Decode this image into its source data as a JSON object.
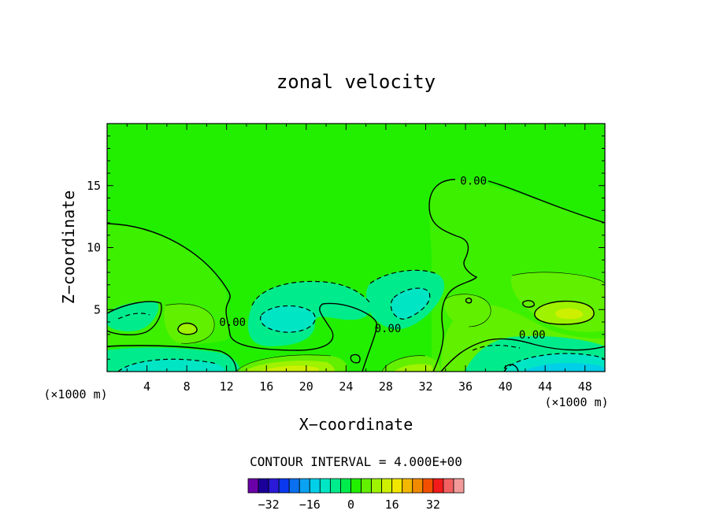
{
  "chart_data": {
    "type": "contour",
    "title": "zonal velocity",
    "xlabel": "X−coordinate",
    "ylabel": "Z−coordinate",
    "x_unit_left": "(×1000 m)",
    "x_unit_right": "(×1000 m)",
    "xlim": [
      0,
      50
    ],
    "ylim": [
      0,
      20
    ],
    "x_ticks": [
      4,
      8,
      12,
      16,
      20,
      24,
      28,
      32,
      36,
      40,
      44,
      48
    ],
    "y_ticks": [
      5,
      10,
      15
    ],
    "contour_interval_label": "CONTOUR INTERVAL = 4.000E+00",
    "contour_labels": [
      {
        "text": "0.00",
        "x": 36.8,
        "z": 15.4
      },
      {
        "text": "0.00",
        "x": 12.6,
        "z": 4.0
      },
      {
        "text": "0.00",
        "x": 28.2,
        "z": 3.5
      },
      {
        "text": "0.00",
        "x": 42.7,
        "z": 3.0
      }
    ],
    "background_color": "#22ef00",
    "features": [
      {
        "kind": "positive",
        "x": 8.5,
        "z": 3.5,
        "level": 8
      },
      {
        "kind": "positive",
        "x": 18.0,
        "z": 0.3,
        "level": 20
      },
      {
        "kind": "positive",
        "x": 30.0,
        "z": 0.6,
        "level": 16
      },
      {
        "kind": "positive",
        "x": 45.7,
        "z": 4.9,
        "level": 20
      },
      {
        "kind": "negative",
        "x": 2.5,
        "z": 4.5,
        "level": -4
      },
      {
        "kind": "negative",
        "x": 5.0,
        "z": 0.3,
        "level": -16
      },
      {
        "kind": "negative",
        "x": 18.0,
        "z": 4.0,
        "level": -8
      },
      {
        "kind": "negative",
        "x": 30.0,
        "z": 5.5,
        "level": -8
      },
      {
        "kind": "negative",
        "x": 46.0,
        "z": 0.3,
        "level": -20
      }
    ],
    "colorbar": {
      "colors": [
        "#6a00a8",
        "#1a0098",
        "#2a1ad8",
        "#0a38ee",
        "#0a70f0",
        "#0aa2f2",
        "#00cfe8",
        "#00e6c4",
        "#00ec8c",
        "#00ec4c",
        "#22ef00",
        "#62ef00",
        "#9ff200",
        "#cdf000",
        "#f2e600",
        "#f2b800",
        "#f28a00",
        "#f25000",
        "#f21a1a",
        "#f26060",
        "#f29a9a"
      ],
      "tick_labels": [
        "−32",
        "−16",
        "0",
        "16",
        "32"
      ],
      "tick_values": [
        -32,
        -16,
        0,
        16,
        32
      ]
    }
  }
}
